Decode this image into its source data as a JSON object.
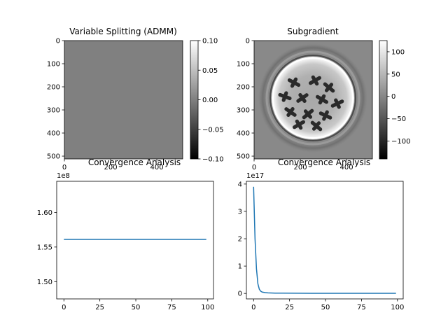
{
  "figure": {
    "background": "#ffffff"
  },
  "chart_data": [
    {
      "type": "heatmap",
      "title": "Variable Splitting (ADMM)",
      "image_content": "uniform mid-gray field (all zeros)",
      "colormap": "gray",
      "xlim": [
        0,
        511
      ],
      "ylim": [
        511,
        0
      ],
      "xticks": [
        "0",
        "200",
        "400"
      ],
      "yticks": [
        "0",
        "100",
        "200",
        "300",
        "400",
        "500"
      ],
      "colorbar": {
        "range": [
          -0.1,
          0.1
        ],
        "ticks": [
          "0.10",
          "0.05",
          "0.00",
          "−0.05",
          "−0.10"
        ],
        "tick_values": [
          0.1,
          0.05,
          0.0,
          -0.05,
          -0.1
        ]
      },
      "fill_color": "#808080"
    },
    {
      "type": "heatmap",
      "title": "Subgradient",
      "image_content": "bright ring around a circular disk containing dark X-shaped blobs on gray background",
      "colormap": "gray",
      "xlim": [
        0,
        511
      ],
      "ylim": [
        511,
        0
      ],
      "xticks": [
        "0",
        "200",
        "400"
      ],
      "yticks": [
        "0",
        "100",
        "200",
        "300",
        "400",
        "500"
      ],
      "colorbar": {
        "range": [
          -140,
          125
        ],
        "ticks": [
          "100",
          "50",
          "0",
          "−50",
          "−100"
        ],
        "tick_values": [
          100,
          50,
          0,
          -50,
          -100
        ]
      }
    },
    {
      "type": "line",
      "title": "Convergence Analysis",
      "offset_text": "1e8",
      "xlim": [
        -5,
        104
      ],
      "ylim": [
        1.475,
        1.645
      ],
      "xticks": [
        0,
        25,
        50,
        75,
        100
      ],
      "xtick_labels": [
        "0",
        "25",
        "50",
        "75",
        "100"
      ],
      "yticks": [
        1.5,
        1.55,
        1.6
      ],
      "ytick_labels": [
        "1.50",
        "1.55",
        "1.60"
      ],
      "series": [
        {
          "color": "#1f77b4",
          "x": [
            0,
            99
          ],
          "y": [
            1.561,
            1.561
          ]
        }
      ]
    },
    {
      "type": "line",
      "title": "Convergence Analysis",
      "offset_text": "1e17",
      "xlim": [
        -5,
        104
      ],
      "ylim": [
        -0.2,
        4.1
      ],
      "xticks": [
        0,
        25,
        50,
        75,
        100
      ],
      "xtick_labels": [
        "0",
        "25",
        "50",
        "75",
        "100"
      ],
      "yticks": [
        0,
        1,
        2,
        3,
        4
      ],
      "ytick_labels": [
        "0",
        "1",
        "2",
        "3",
        "4"
      ],
      "series": [
        {
          "color": "#1f77b4",
          "x": [
            0,
            1,
            2,
            3,
            4,
            5,
            6,
            8,
            10,
            15,
            20,
            30,
            40,
            50,
            60,
            70,
            80,
            90,
            99
          ],
          "y": [
            3.9,
            2.0,
            0.9,
            0.35,
            0.15,
            0.08,
            0.05,
            0.03,
            0.02,
            0.012,
            0.01,
            0.008,
            0.006,
            0.005,
            0.005,
            0.005,
            0.005,
            0.005,
            0.005
          ]
        }
      ]
    }
  ]
}
